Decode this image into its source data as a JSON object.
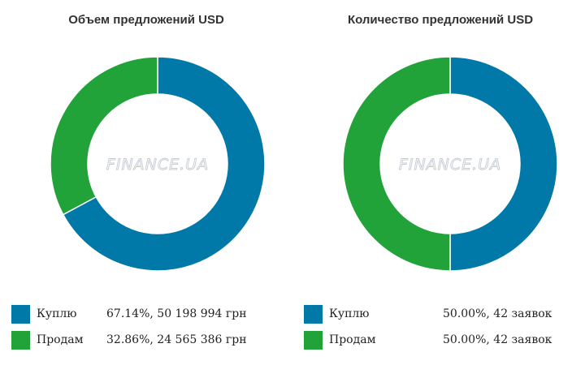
{
  "chart_data": [
    {
      "type": "donut",
      "title": "Объем предложений USD",
      "categories": [
        "Куплю",
        "Продам"
      ],
      "values": [
        67.14,
        32.86
      ],
      "value_labels": [
        "67.14%, 50 198 994 грн",
        "32.86%, 24 565 386 грн"
      ],
      "colors": [
        "#0078a8",
        "#22a33a"
      ],
      "watermark": "FINANCE.UA",
      "legend_position": "bottom"
    },
    {
      "type": "donut",
      "title": "Количество предложений USD",
      "categories": [
        "Куплю",
        "Продам"
      ],
      "values": [
        50.0,
        50.0
      ],
      "value_labels": [
        "50.00%, 42 заявок",
        "50.00%, 42 заявок"
      ],
      "colors": [
        "#0078a8",
        "#22a33a"
      ],
      "watermark": "FINANCE.UA",
      "legend_position": "bottom"
    }
  ]
}
